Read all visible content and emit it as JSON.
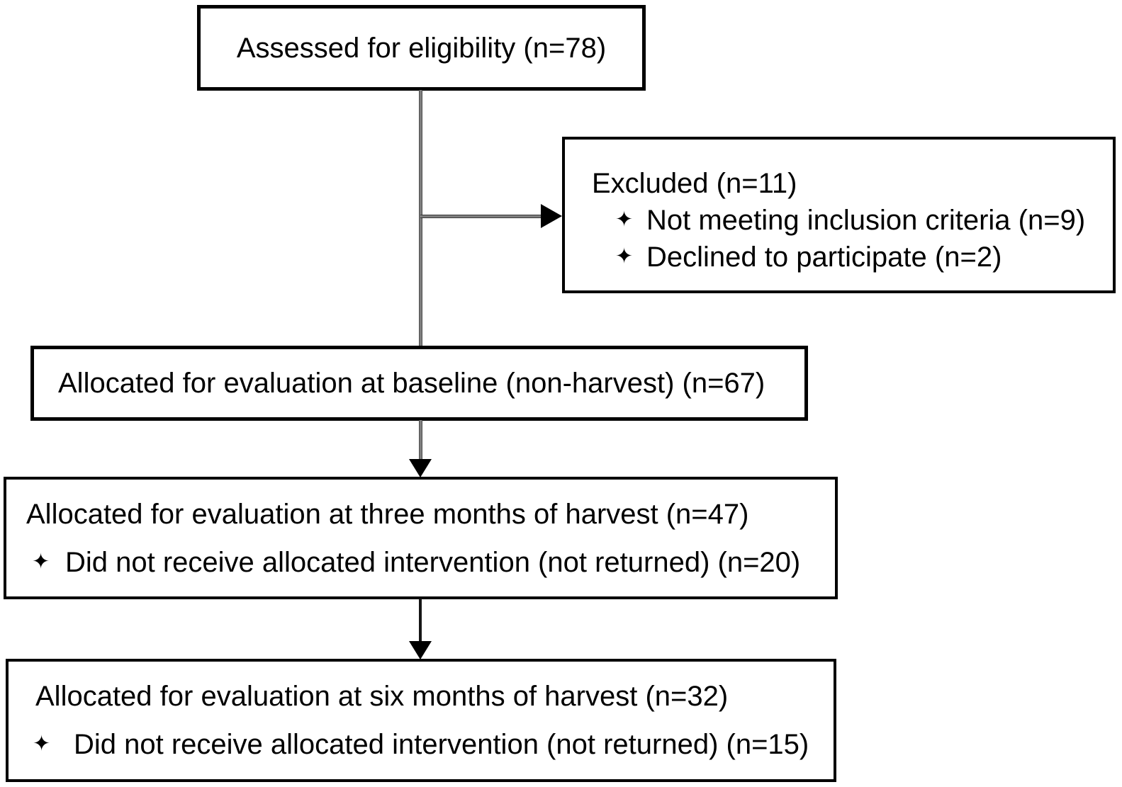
{
  "diagram": {
    "type": "consort-participant-flowchart",
    "bullet_icon": "✦",
    "colors": {
      "background": "#ffffff",
      "box_border": "#000000",
      "text": "#000000",
      "connector_gray": "#7e7e7e",
      "connector_black": "#161616",
      "arrowhead": "#000000"
    },
    "boxes": {
      "assessed": {
        "text": "Assessed for eligibility (n=78)"
      },
      "excluded": {
        "title": "Excluded (n=11)",
        "items": [
          "Not meeting inclusion criteria (n=9)",
          "Declined to participate (n=2)"
        ]
      },
      "baseline": {
        "text": "Allocated for evaluation at baseline (non-harvest) (n=67)"
      },
      "three_months": {
        "title": "Allocated for evaluation at three months of harvest (n=47)",
        "items": [
          "Did not receive allocated intervention (not returned) (n=20)"
        ]
      },
      "six_months": {
        "title": "Allocated for evaluation at six months of harvest (n=32)",
        "items": [
          "Did not receive allocated intervention (not returned) (n=15)"
        ]
      }
    }
  }
}
